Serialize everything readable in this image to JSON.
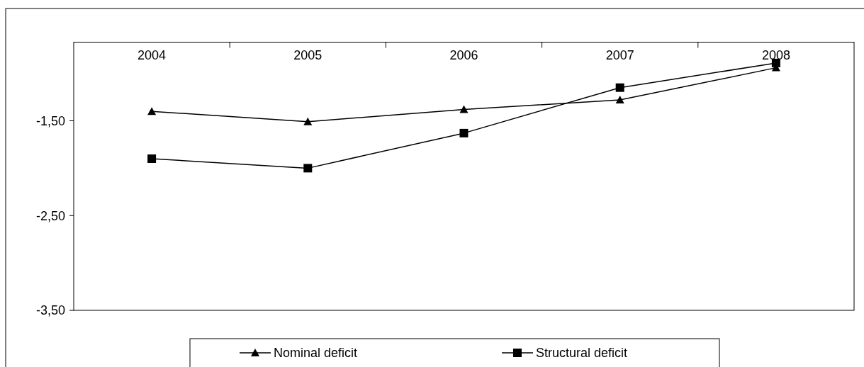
{
  "chart_data": {
    "type": "line",
    "categories": [
      "2004",
      "2005",
      "2006",
      "2007",
      "2008"
    ],
    "series": [
      {
        "name": "Nominal deficit",
        "color": "#000000",
        "marker": "triangle",
        "values": [
          -1.4,
          -1.51,
          -1.38,
          -1.28,
          -0.94
        ]
      },
      {
        "name": "Structural deficit",
        "color": "#000000",
        "marker": "square",
        "values": [
          -1.9,
          -2.0,
          -1.63,
          -1.15,
          -0.89
        ]
      }
    ],
    "ylim": [
      -3.5,
      -0.67
    ],
    "yticks": [
      {
        "value": -1.5,
        "label": "-1,50"
      },
      {
        "value": -2.5,
        "label": "-2,50"
      },
      {
        "value": -3.5,
        "label": "-3,50"
      }
    ],
    "grid": false,
    "legend": "bottom",
    "line_style": "solid"
  }
}
